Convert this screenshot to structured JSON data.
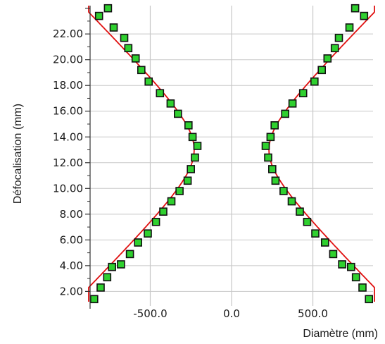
{
  "chart_data": {
    "type": "scatter",
    "title": "",
    "xlabel": "Diamètre (mm)",
    "ylabel": "Défocalisation (mm)",
    "xlim": [
      -870,
      870
    ],
    "ylim": [
      1.2,
      24.2
    ],
    "x_ticks": [
      -500.0,
      0.0,
      500.0
    ],
    "x_tick_labels": [
      "-500.0",
      "0.0",
      "500.0"
    ],
    "y_ticks": [
      2,
      4,
      6,
      8,
      10,
      12,
      14,
      16,
      18,
      20,
      22
    ],
    "y_tick_labels": [
      "2.00",
      "4.00",
      "6.00",
      "8.00",
      "10.00",
      "12.00",
      "14.00",
      "16.00",
      "18.00",
      "20.00",
      "22.00"
    ],
    "grid": true,
    "legend": "none",
    "colors": {
      "marker_fill": "#2fd02f",
      "marker_edge": "#111111",
      "fit_line": "#e01010",
      "grid": "#c8c8c8"
    },
    "series": [
      {
        "role": "measured",
        "marker": "square",
        "points": [
          [
            -760,
            24.0
          ],
          [
            -815,
            23.4
          ],
          [
            -725,
            22.5
          ],
          [
            -660,
            21.7
          ],
          [
            -635,
            20.9
          ],
          [
            -590,
            20.1
          ],
          [
            -555,
            19.2
          ],
          [
            -510,
            18.3
          ],
          [
            -440,
            17.4
          ],
          [
            -375,
            16.6
          ],
          [
            -330,
            15.8
          ],
          [
            -265,
            14.9
          ],
          [
            -240,
            14.0
          ],
          [
            -210,
            13.3
          ],
          [
            -225,
            12.4
          ],
          [
            -250,
            11.5
          ],
          [
            -270,
            10.6
          ],
          [
            -320,
            9.8
          ],
          [
            -370,
            9.0
          ],
          [
            -420,
            8.2
          ],
          [
            -465,
            7.4
          ],
          [
            -515,
            6.5
          ],
          [
            -575,
            5.8
          ],
          [
            -625,
            4.9
          ],
          [
            -680,
            4.1
          ],
          [
            -735,
            3.9
          ],
          [
            -765,
            3.1
          ],
          [
            -805,
            2.3
          ],
          [
            -845,
            1.4
          ],
          [
            760,
            24.0
          ],
          [
            815,
            23.4
          ],
          [
            725,
            22.5
          ],
          [
            660,
            21.7
          ],
          [
            635,
            20.9
          ],
          [
            590,
            20.1
          ],
          [
            555,
            19.2
          ],
          [
            510,
            18.3
          ],
          [
            440,
            17.4
          ],
          [
            375,
            16.6
          ],
          [
            330,
            15.8
          ],
          [
            265,
            14.9
          ],
          [
            240,
            14.0
          ],
          [
            210,
            13.3
          ],
          [
            225,
            12.4
          ],
          [
            250,
            11.5
          ],
          [
            270,
            10.6
          ],
          [
            320,
            9.8
          ],
          [
            370,
            9.0
          ],
          [
            420,
            8.2
          ],
          [
            465,
            7.4
          ],
          [
            515,
            6.5
          ],
          [
            575,
            5.8
          ],
          [
            625,
            4.9
          ],
          [
            680,
            4.1
          ],
          [
            735,
            3.9
          ],
          [
            765,
            3.1
          ],
          [
            805,
            2.3
          ],
          [
            845,
            1.4
          ]
        ]
      },
      {
        "role": "fit",
        "type": "line",
        "waist_diameter": 230,
        "waist_position": 13.0,
        "rayleigh_length": 2.9
      }
    ]
  }
}
